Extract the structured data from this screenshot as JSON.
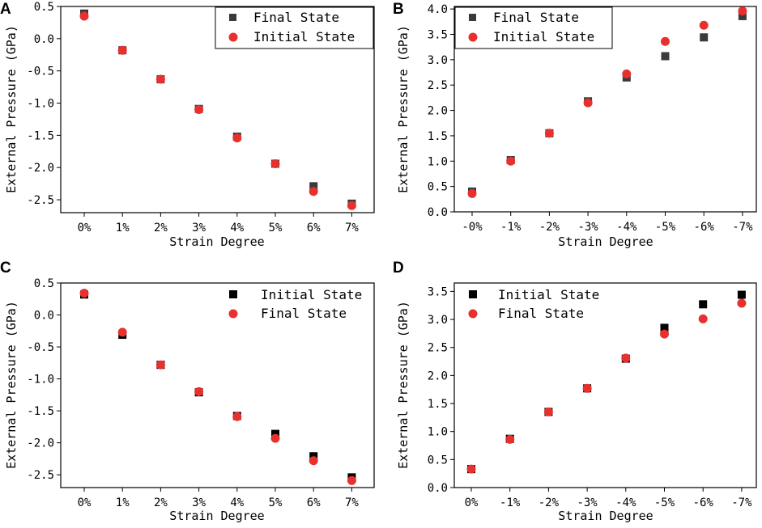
{
  "chart_data": [
    {
      "panel": "A",
      "type": "scatter",
      "title": "",
      "xlabel": "Strain Degree",
      "ylabel": "External Pressure (GPa)",
      "categories": [
        "0%",
        "1%",
        "2%",
        "3%",
        "4%",
        "5%",
        "6%",
        "7%"
      ],
      "ylim": [
        -2.7,
        0.5
      ],
      "yticks": [
        0.5,
        0.0,
        -0.5,
        -1.0,
        -1.5,
        -2.0,
        -2.5
      ],
      "ytick_labels": [
        "0.5",
        "0.0",
        "-0.5",
        "-1.0",
        "-1.5",
        "-2.0",
        "-2.5"
      ],
      "legend_position": "top-right",
      "series": [
        {
          "name": "Final State",
          "marker": "square",
          "color": "#3a3a3a",
          "values": [
            0.39,
            -0.18,
            -0.63,
            -1.09,
            -1.52,
            -1.94,
            -2.29,
            -2.56
          ]
        },
        {
          "name": "Initial State",
          "marker": "circle",
          "color": "#e8302f",
          "values": [
            0.35,
            -0.18,
            -0.63,
            -1.1,
            -1.54,
            -1.94,
            -2.37,
            -2.59
          ]
        }
      ]
    },
    {
      "panel": "B",
      "type": "scatter",
      "title": "",
      "xlabel": "Strain Degree",
      "ylabel": "External Pressure (GPa)",
      "categories": [
        "-0%",
        "-1%",
        "-2%",
        "-3%",
        "-4%",
        "-5%",
        "-6%",
        "-7%"
      ],
      "ylim": [
        0.0,
        4.05
      ],
      "yticks": [
        0.0,
        0.5,
        1.0,
        1.5,
        2.0,
        2.5,
        3.0,
        3.5,
        4.0
      ],
      "ytick_labels": [
        "0.0",
        "0.5",
        "1.0",
        "1.5",
        "2.0",
        "2.5",
        "3.0",
        "3.5",
        "4.0"
      ],
      "legend_position": "top-left",
      "series": [
        {
          "name": "Final State",
          "marker": "square",
          "color": "#3a3a3a",
          "values": [
            0.4,
            1.02,
            1.55,
            2.18,
            2.65,
            3.07,
            3.44,
            3.86
          ]
        },
        {
          "name": "Initial State",
          "marker": "circle",
          "color": "#e8302f",
          "values": [
            0.36,
            1.0,
            1.55,
            2.15,
            2.72,
            3.36,
            3.68,
            3.96
          ]
        }
      ]
    },
    {
      "panel": "C",
      "type": "scatter",
      "title": "",
      "xlabel": "Strain Degree",
      "ylabel": "External Pressure (GPa)",
      "categories": [
        "0%",
        "1%",
        "2%",
        "3%",
        "4%",
        "5%",
        "6%",
        "7%"
      ],
      "ylim": [
        -2.7,
        0.5
      ],
      "yticks": [
        0.5,
        0.0,
        -0.5,
        -1.0,
        -1.5,
        -2.0,
        -2.5
      ],
      "ytick_labels": [
        "0.5",
        "0.0",
        "-0.5",
        "-1.0",
        "-1.5",
        "-2.0",
        "-2.5"
      ],
      "legend_position": "top-right",
      "series": [
        {
          "name": "Initial State",
          "marker": "square",
          "color": "#000000",
          "values": [
            0.32,
            -0.31,
            -0.78,
            -1.21,
            -1.58,
            -1.86,
            -2.21,
            -2.54
          ]
        },
        {
          "name": "Final State",
          "marker": "circle",
          "color": "#e8302f",
          "values": [
            0.34,
            -0.27,
            -0.78,
            -1.2,
            -1.59,
            -1.93,
            -2.28,
            -2.59
          ]
        }
      ]
    },
    {
      "panel": "D",
      "type": "scatter",
      "title": "",
      "xlabel": "Strain Degree",
      "ylabel": "External Pressure (GPa)",
      "categories": [
        "0%",
        "-1%",
        "-2%",
        "-3%",
        "-4%",
        "-5%",
        "-6%",
        "-7%"
      ],
      "ylim": [
        0.0,
        3.65
      ],
      "yticks": [
        0.0,
        0.5,
        1.0,
        1.5,
        2.0,
        2.5,
        3.0,
        3.5
      ],
      "ytick_labels": [
        "0.0",
        "0.5",
        "1.0",
        "1.5",
        "2.0",
        "2.5",
        "3.0",
        "3.5"
      ],
      "legend_position": "top-left",
      "series": [
        {
          "name": "Initial State",
          "marker": "square",
          "color": "#000000",
          "values": [
            0.33,
            0.87,
            1.35,
            1.77,
            2.3,
            2.85,
            3.27,
            3.44
          ]
        },
        {
          "name": "Final State",
          "marker": "circle",
          "color": "#e8302f",
          "values": [
            0.33,
            0.86,
            1.35,
            1.77,
            2.31,
            2.74,
            3.01,
            3.29
          ]
        }
      ]
    }
  ]
}
